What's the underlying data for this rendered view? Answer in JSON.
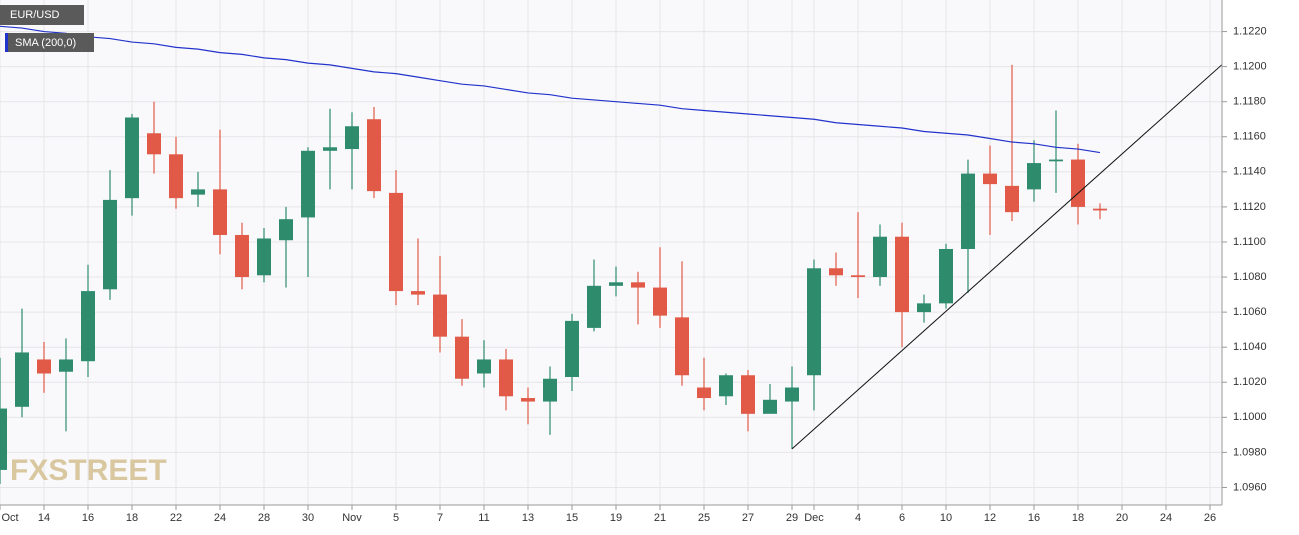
{
  "chart_data": {
    "type": "candlestick",
    "categories": [
      "Oct",
      null,
      "14",
      null,
      "16",
      null,
      "18",
      null,
      "22",
      null,
      "24",
      null,
      "28",
      null,
      "30",
      null,
      "Nov",
      null,
      "5",
      null,
      "7",
      null,
      "11",
      null,
      "13",
      null,
      "15",
      null,
      "19",
      null,
      "21",
      null,
      "25",
      null,
      "27",
      null,
      "29",
      "Dec",
      null,
      "4",
      null,
      "6",
      null,
      "10",
      null,
      "12",
      null,
      "16",
      null,
      "18",
      null,
      "20",
      null,
      "24",
      null,
      "26"
    ],
    "series": [
      {
        "name": "EUR/USD",
        "up_color": "#2e8b6c",
        "down_color": "#e05a47",
        "open": [
          1.097,
          1.1006,
          1.1033,
          1.1026,
          1.1032,
          1.1073,
          1.1125,
          1.1162,
          1.115,
          1.1127,
          1.113,
          1.1104,
          1.1081,
          1.1101,
          1.1114,
          1.1152,
          1.1153,
          1.117,
          1.1128,
          1.1072,
          1.107,
          1.1046,
          1.1025,
          1.1033,
          1.1011,
          1.1009,
          1.1023,
          1.1051,
          1.1075,
          1.1077,
          1.1074,
          1.1057,
          1.1017,
          1.1012,
          1.1024,
          1.1002,
          1.1009,
          1.1024,
          1.1085,
          1.1081,
          1.108,
          1.1103,
          1.106,
          1.1065,
          1.1096,
          1.1139,
          1.1132,
          1.113,
          1.1146,
          1.1147,
          1.1119,
          null,
          null,
          null,
          null,
          null
        ],
        "high": [
          1.1034,
          1.1062,
          1.1043,
          1.1045,
          1.1087,
          1.1141,
          1.1173,
          1.118,
          1.116,
          1.114,
          1.1164,
          1.1111,
          1.1108,
          1.112,
          1.1154,
          1.1176,
          1.1174,
          1.1177,
          1.1141,
          1.1102,
          1.1092,
          1.1056,
          1.1044,
          1.1039,
          1.1017,
          1.1029,
          1.1059,
          1.109,
          1.1086,
          1.1083,
          1.1097,
          1.1089,
          1.1034,
          1.1025,
          1.1027,
          1.1019,
          1.1029,
          1.109,
          1.1094,
          1.1117,
          1.111,
          1.1111,
          1.107,
          1.1099,
          1.1147,
          1.1155,
          1.1201,
          1.1158,
          1.1175,
          1.1156,
          1.1122,
          null,
          null,
          null,
          null,
          null
        ],
        "low": [
          1.0962,
          1.1,
          1.1014,
          1.0992,
          1.1023,
          1.1067,
          1.1115,
          1.1139,
          1.1119,
          1.112,
          1.1093,
          1.1073,
          1.1077,
          1.1074,
          1.108,
          1.113,
          1.113,
          1.1125,
          1.1064,
          1.1064,
          1.1037,
          1.1018,
          1.1017,
          1.1004,
          1.0996,
          1.099,
          1.1015,
          1.1049,
          1.1069,
          1.1053,
          1.1051,
          1.1018,
          1.1004,
          1.1007,
          1.0992,
          1.1004,
          1.0982,
          1.1004,
          1.1075,
          1.1068,
          1.1075,
          1.104,
          1.1054,
          1.1062,
          1.1071,
          1.1104,
          1.1112,
          1.1123,
          1.1128,
          1.111,
          1.1113,
          null,
          null,
          null,
          null,
          null
        ],
        "close": [
          1.1005,
          1.1037,
          1.1025,
          1.1033,
          1.1072,
          1.1124,
          1.1171,
          1.115,
          1.1125,
          1.113,
          1.1104,
          1.108,
          1.1102,
          1.1113,
          1.1152,
          1.1154,
          1.1166,
          1.1129,
          1.1072,
          1.107,
          1.1046,
          1.1022,
          1.1033,
          1.1012,
          1.1009,
          1.1022,
          1.1055,
          1.1075,
          1.1077,
          1.1074,
          1.1058,
          1.1024,
          1.1011,
          1.1024,
          1.1002,
          1.101,
          1.1017,
          1.1085,
          1.1081,
          1.108,
          1.1103,
          1.106,
          1.1065,
          1.1096,
          1.1139,
          1.1133,
          1.1117,
          1.1145,
          1.1147,
          1.112,
          1.1118,
          null,
          null,
          null,
          null,
          null
        ]
      },
      {
        "name": "SMA (200,0)",
        "type": "line",
        "color": "#2233cc",
        "values": [
          1.1223,
          1.1222,
          1.122,
          1.1219,
          1.1217,
          1.1216,
          1.1214,
          1.1213,
          1.1211,
          1.121,
          1.1208,
          1.1207,
          1.1205,
          1.1204,
          1.1202,
          1.1201,
          1.1199,
          1.1197,
          1.1196,
          1.1194,
          1.1192,
          1.119,
          1.1189,
          1.1187,
          1.1185,
          1.1184,
          1.1182,
          1.1181,
          1.118,
          1.1179,
          1.1178,
          1.1176,
          1.1175,
          1.1174,
          1.1173,
          1.1172,
          1.1171,
          1.117,
          1.1168,
          1.1167,
          1.1166,
          1.1165,
          1.1163,
          1.1162,
          1.1161,
          1.1159,
          1.1157,
          1.1156,
          1.1154,
          1.1153,
          1.1151,
          null,
          null,
          null,
          null,
          null
        ]
      }
    ],
    "trend_line": {
      "x": [
        36,
        55.8
      ],
      "values": [
        1.0982,
        1.1204
      ],
      "color": "#111111"
    },
    "ylim": [
      1.095,
      1.1238
    ],
    "yticks": [
      {
        "value": 1.096,
        "label": "1.0960"
      },
      {
        "value": 1.098,
        "label": "1.0980"
      },
      {
        "value": 1.1,
        "label": "1.1000"
      },
      {
        "value": 1.102,
        "label": "1.1020"
      },
      {
        "value": 1.104,
        "label": "1.1040"
      },
      {
        "value": 1.106,
        "label": "1.1060"
      },
      {
        "value": 1.108,
        "label": "1.1080"
      },
      {
        "value": 1.11,
        "label": "1.1100"
      },
      {
        "value": 1.112,
        "label": "1.1120"
      },
      {
        "value": 1.114,
        "label": "1.1140"
      },
      {
        "value": 1.116,
        "label": "1.1160"
      },
      {
        "value": 1.118,
        "label": "1.1180"
      },
      {
        "value": 1.12,
        "label": "1.1200"
      },
      {
        "value": 1.122,
        "label": "1.1220"
      }
    ],
    "grid": true,
    "watermark": "FXSTREET"
  }
}
